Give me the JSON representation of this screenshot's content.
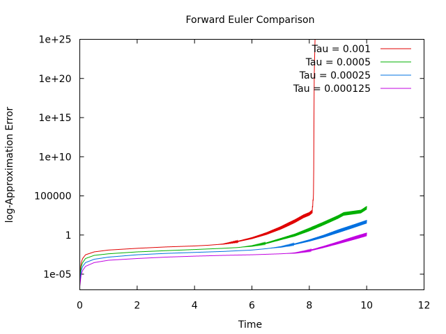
{
  "chart_data": {
    "type": "line",
    "title": "Forward Euler Comparison",
    "xlabel": "Time",
    "ylabel": "log-Approximation Error",
    "xlim": [
      0,
      12
    ],
    "ylim": [
      1e-07,
      1e+25
    ],
    "yscale": "log",
    "x_ticks": [
      0,
      2,
      4,
      6,
      8,
      10,
      12
    ],
    "x_tick_labels": [
      "0",
      "2",
      "4",
      "6",
      "8",
      "10",
      "12"
    ],
    "y_ticks": [
      1e-05,
      1,
      100000.0,
      10000000000.0,
      1000000000000000.0,
      1e+20,
      1e+25
    ],
    "y_tick_labels": [
      "1e-05",
      "1",
      "100000",
      "1e+10",
      "1e+15",
      "1e+20",
      "1e+25"
    ],
    "grid": false,
    "legend_position": "top-right",
    "series": [
      {
        "name": "Tau = 0.001",
        "color": "#e00000",
        "oscillation_start": 4.8,
        "x": [
          0.001,
          0.05,
          0.1,
          0.2,
          0.5,
          1,
          2,
          3,
          4,
          4.5,
          5,
          5.5,
          6,
          6.5,
          7,
          7.5,
          7.8,
          8.0,
          8.1,
          8.15,
          8.17,
          8.2
        ],
        "y": [
          1e-05,
          0.0003,
          0.001,
          0.003,
          0.007,
          0.012,
          0.02,
          0.03,
          0.04,
          0.05,
          0.07,
          0.15,
          0.4,
          1.5,
          8,
          60,
          250,
          500,
          1000,
          200000.0,
          1e+20,
          1e+25
        ]
      },
      {
        "name": "Tau = 0.0005",
        "color": "#00b000",
        "oscillation_start": 5.6,
        "x": [
          0.001,
          0.05,
          0.1,
          0.2,
          0.5,
          1,
          2,
          3,
          4,
          5,
          5.5,
          6,
          6.5,
          7,
          7.5,
          8,
          8.5,
          9,
          9.2,
          9.5,
          9.8,
          10
        ],
        "y": [
          3e-06,
          0.0001,
          0.0003,
          0.001,
          0.0025,
          0.004,
          0.007,
          0.01,
          0.014,
          0.02,
          0.025,
          0.04,
          0.09,
          0.3,
          1,
          5,
          30,
          200,
          500,
          700,
          1000,
          3000
        ]
      },
      {
        "name": "Tau = 0.00025",
        "color": "#0070e0",
        "oscillation_start": 6.6,
        "x": [
          0.001,
          0.05,
          0.1,
          0.2,
          0.5,
          1,
          2,
          3,
          4,
          5,
          6,
          6.5,
          7,
          7.5,
          8,
          8.5,
          9,
          9.5,
          10
        ],
        "y": [
          1e-06,
          3e-05,
          0.0001,
          0.0003,
          0.0008,
          0.0015,
          0.003,
          0.0045,
          0.006,
          0.008,
          0.012,
          0.018,
          0.03,
          0.07,
          0.2,
          0.7,
          3,
          12,
          50
        ]
      },
      {
        "name": "Tau = 0.000125",
        "color": "#c000e0",
        "oscillation_start": 7.2,
        "x": [
          0.001,
          0.05,
          0.1,
          0.2,
          0.5,
          1,
          2,
          3,
          4,
          5,
          6,
          7,
          7.5,
          8,
          8.5,
          9,
          9.5,
          10
        ],
        "y": [
          3e-07,
          1e-05,
          3e-05,
          0.0001,
          0.0003,
          0.0006,
          0.001,
          0.0015,
          0.002,
          0.0025,
          0.003,
          0.004,
          0.005,
          0.01,
          0.03,
          0.1,
          0.35,
          1.2
        ]
      }
    ]
  }
}
